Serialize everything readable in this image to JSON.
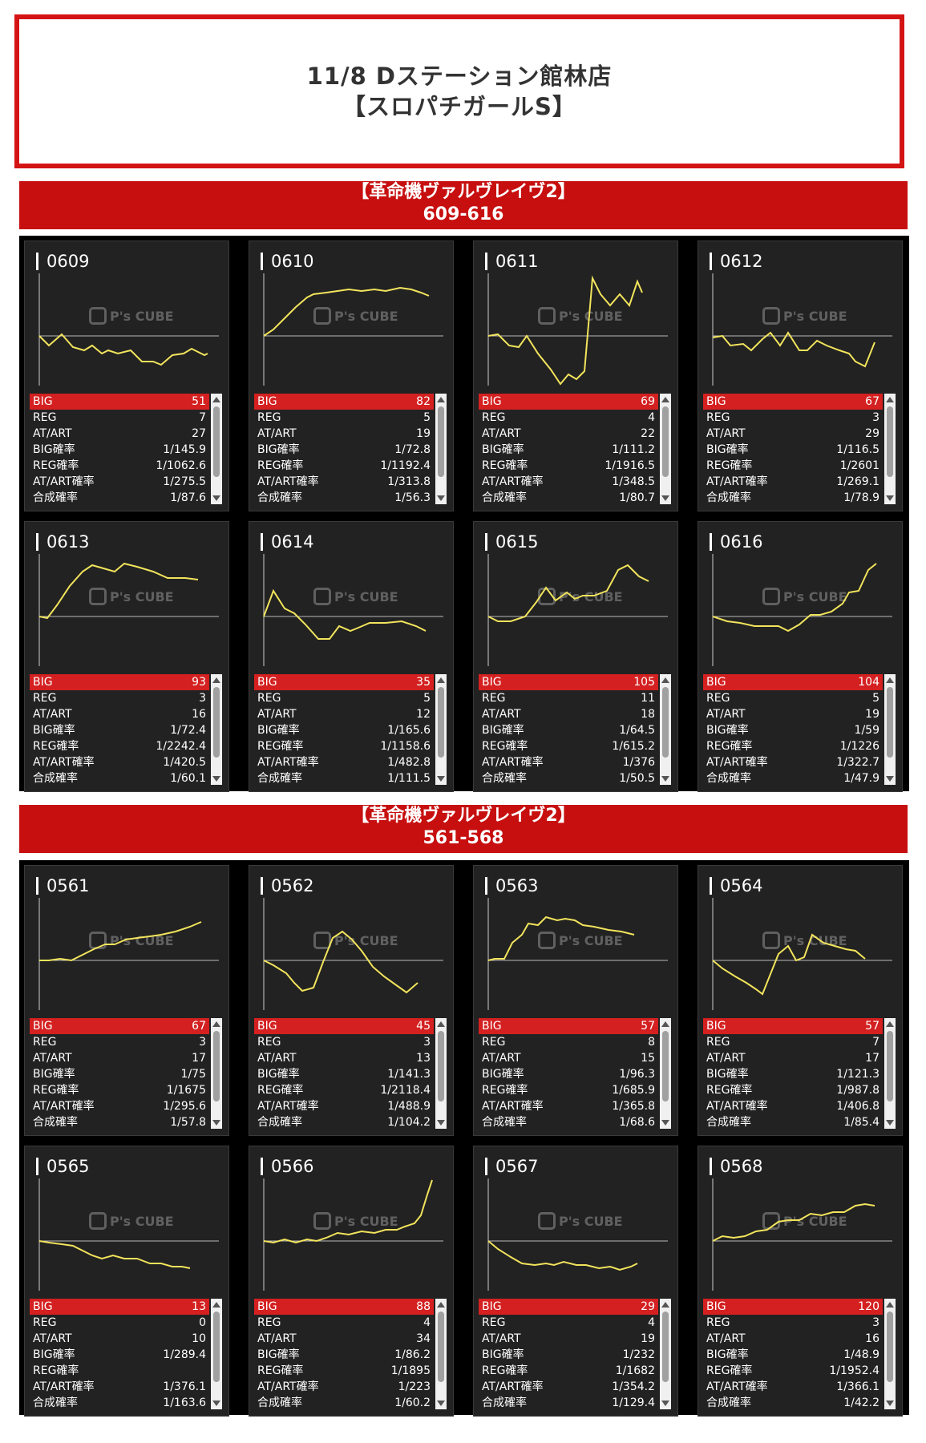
{
  "header": {
    "line1": "11/8 Dステーション館林店",
    "line2": "【スロパチガールS】"
  },
  "watermark": "P's CUBE",
  "sections": [
    {
      "title": "【革命機ヴァルヴレイヴ2】",
      "range": "609-616",
      "machines": [
        {
          "id": "0609",
          "stats": {
            "BIG": "51",
            "REG": "7",
            "AT/ART": "27",
            "BIG確率": "1/145.9",
            "REG確率": "1/1062.6",
            "AT/ART確率": "1/275.5",
            "合成確率": "1/87.6"
          }
        },
        {
          "id": "0610",
          "stats": {
            "BIG": "82",
            "REG": "5",
            "AT/ART": "19",
            "BIG確率": "1/72.8",
            "REG確率": "1/1192.4",
            "AT/ART確率": "1/313.8",
            "合成確率": "1/56.3"
          }
        },
        {
          "id": "0611",
          "stats": {
            "BIG": "69",
            "REG": "4",
            "AT/ART": "22",
            "BIG確率": "1/111.2",
            "REG確率": "1/1916.5",
            "AT/ART確率": "1/348.5",
            "合成確率": "1/80.7"
          }
        },
        {
          "id": "0612",
          "stats": {
            "BIG": "67",
            "REG": "3",
            "AT/ART": "29",
            "BIG確率": "1/116.5",
            "REG確率": "1/2601",
            "AT/ART確率": "1/269.1",
            "合成確率": "1/78.9"
          }
        },
        {
          "id": "0613",
          "stats": {
            "BIG": "93",
            "REG": "3",
            "AT/ART": "16",
            "BIG確率": "1/72.4",
            "REG確率": "1/2242.4",
            "AT/ART確率": "1/420.5",
            "合成確率": "1/60.1"
          }
        },
        {
          "id": "0614",
          "stats": {
            "BIG": "35",
            "REG": "5",
            "AT/ART": "12",
            "BIG確率": "1/165.6",
            "REG確率": "1/1158.6",
            "AT/ART確率": "1/482.8",
            "合成確率": "1/111.5"
          }
        },
        {
          "id": "0615",
          "stats": {
            "BIG": "105",
            "REG": "11",
            "AT/ART": "18",
            "BIG確率": "1/64.5",
            "REG確率": "1/615.2",
            "AT/ART確率": "1/376",
            "合成確率": "1/50.5"
          }
        },
        {
          "id": "0616",
          "stats": {
            "BIG": "104",
            "REG": "5",
            "AT/ART": "19",
            "BIG確率": "1/59",
            "REG確率": "1/1226",
            "AT/ART確率": "1/322.7",
            "合成確率": "1/47.9"
          }
        }
      ]
    },
    {
      "title": "【革命機ヴァルヴレイヴ2】",
      "range": "561-568",
      "machines": [
        {
          "id": "0561",
          "stats": {
            "BIG": "67",
            "REG": "3",
            "AT/ART": "17",
            "BIG確率": "1/75",
            "REG確率": "1/1675",
            "AT/ART確率": "1/295.6",
            "合成確率": "1/57.8"
          }
        },
        {
          "id": "0562",
          "stats": {
            "BIG": "45",
            "REG": "3",
            "AT/ART": "13",
            "BIG確率": "1/141.3",
            "REG確率": "1/2118.4",
            "AT/ART確率": "1/488.9",
            "合成確率": "1/104.2"
          }
        },
        {
          "id": "0563",
          "stats": {
            "BIG": "57",
            "REG": "8",
            "AT/ART": "15",
            "BIG確率": "1/96.3",
            "REG確率": "1/685.9",
            "AT/ART確率": "1/365.8",
            "合成確率": "1/68.6"
          }
        },
        {
          "id": "0564",
          "stats": {
            "BIG": "57",
            "REG": "7",
            "AT/ART": "17",
            "BIG確率": "1/121.3",
            "REG確率": "1/987.8",
            "AT/ART確率": "1/406.8",
            "合成確率": "1/85.4"
          }
        },
        {
          "id": "0565",
          "stats": {
            "BIG": "13",
            "REG": "0",
            "AT/ART": "10",
            "BIG確率": "1/289.4",
            "REG確率": "",
            "AT/ART確率": "1/376.1",
            "合成確率": "1/163.6"
          }
        },
        {
          "id": "0566",
          "stats": {
            "BIG": "88",
            "REG": "4",
            "AT/ART": "34",
            "BIG確率": "1/86.2",
            "REG確率": "1/1895",
            "AT/ART確率": "1/223",
            "合成確率": "1/60.2"
          }
        },
        {
          "id": "0567",
          "stats": {
            "BIG": "29",
            "REG": "4",
            "AT/ART": "19",
            "BIG確率": "1/232",
            "REG確率": "1/1682",
            "AT/ART確率": "1/354.2",
            "合成確率": "1/129.4"
          }
        },
        {
          "id": "0568",
          "stats": {
            "BIG": "120",
            "REG": "3",
            "AT/ART": "16",
            "BIG確率": "1/48.9",
            "REG確率": "1/1952.4",
            "AT/ART確率": "1/366.1",
            "合成確率": "1/42.2"
          }
        }
      ]
    }
  ],
  "stat_labels": [
    "BIG",
    "REG",
    "AT/ART",
    "BIG確率",
    "REG確率",
    "AT/ART確率",
    "合成確率"
  ],
  "colors": {
    "accent": "#d42020",
    "line": "#f2e45c",
    "card": "#222222"
  }
}
